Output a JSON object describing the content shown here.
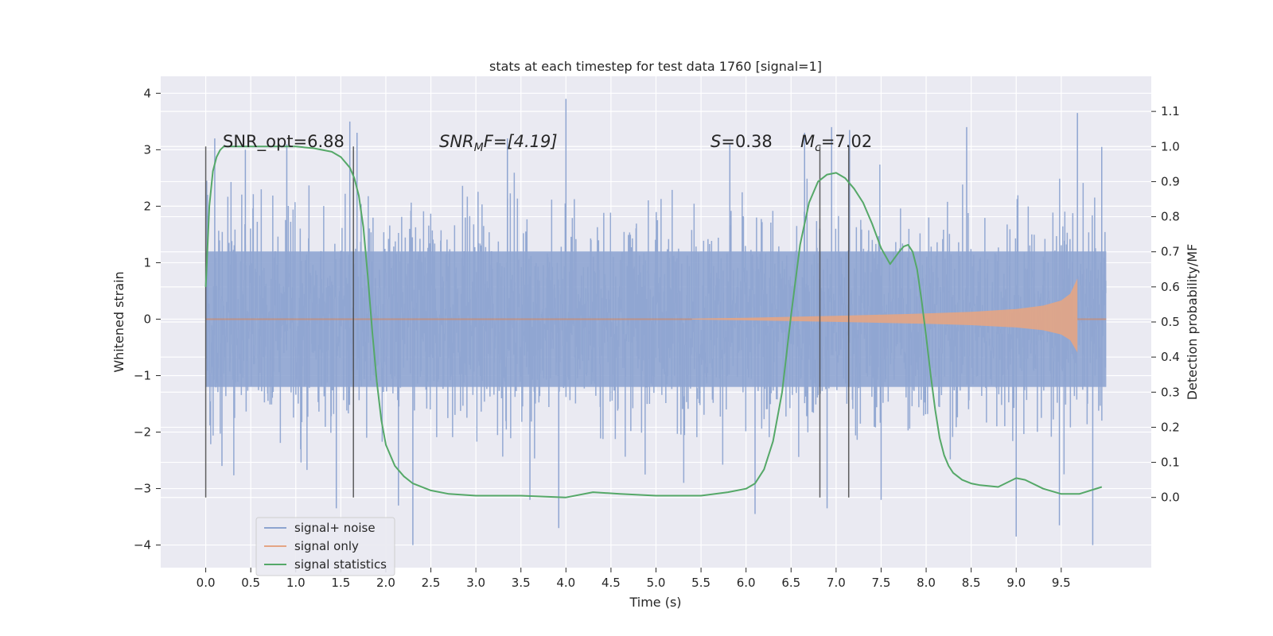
{
  "chart_data": {
    "type": "line",
    "title": "stats at each timestep for test data 1760 [signal=1]",
    "xlabel": "Time (s)",
    "ylabel_left": "Whitened strain",
    "ylabel_right": "Detection probability/MF",
    "xlim": [
      -0.5,
      10.5
    ],
    "ylim_left": [
      -4.4,
      4.3
    ],
    "ylim_right": [
      -0.2,
      1.2
    ],
    "x_ticks": [
      "0.0",
      "0.5",
      "1.0",
      "1.5",
      "2.0",
      "2.5",
      "3.0",
      "3.5",
      "4.0",
      "4.5",
      "5.0",
      "5.5",
      "6.0",
      "6.5",
      "7.0",
      "7.5",
      "8.0",
      "8.5",
      "9.0",
      "9.5"
    ],
    "y_ticks_left": [
      "4",
      "3",
      "2",
      "1",
      "0",
      "−1",
      "−2",
      "−3",
      "−4"
    ],
    "y_ticks_right": [
      "1.1",
      "1.0",
      "0.9",
      "0.8",
      "0.7",
      "0.6",
      "0.5",
      "0.4",
      "0.3",
      "0.2",
      "0.1",
      "0.0"
    ],
    "grid": true,
    "legend_position": "lower-left",
    "legend": [
      {
        "label": "signal+ noise",
        "color": "#4c72b0"
      },
      {
        "label": "signal only",
        "color": "#dd8452"
      },
      {
        "label": "signal statistics",
        "color": "#55a868"
      }
    ],
    "annotations": {
      "snr_opt": "SNR_opt=6.88",
      "snr_mf_base": "SNR",
      "snr_mf_sub": "M",
      "snr_mf_rest": "F=[4.19]",
      "s_base": "S",
      "s_rest": "=0.38",
      "mc_base": "M",
      "mc_sub": "c",
      "mc_rest": "=7.02"
    },
    "vertical_markers_x": [
      0.0,
      1.64,
      6.82,
      7.14
    ],
    "series": [
      {
        "name": "signal+ noise",
        "color": "#4c72b0",
        "noise_std": 1.0,
        "x_range": [
          0.0,
          10.0
        ],
        "extremes": [
          {
            "x": 0.02,
            "y": 2.2
          },
          {
            "x": 0.1,
            "y": 3.2
          },
          {
            "x": 0.18,
            "y": -2.6
          },
          {
            "x": 0.44,
            "y": 3.0
          },
          {
            "x": 0.9,
            "y": 3.1
          },
          {
            "x": 1.45,
            "y": -3.35
          },
          {
            "x": 1.6,
            "y": 3.5
          },
          {
            "x": 1.68,
            "y": 3.3
          },
          {
            "x": 2.14,
            "y": -3.3
          },
          {
            "x": 2.3,
            "y": -4.0
          },
          {
            "x": 3.35,
            "y": 3.2
          },
          {
            "x": 3.6,
            "y": -3.2
          },
          {
            "x": 3.92,
            "y": -3.7
          },
          {
            "x": 4.0,
            "y": 3.9
          },
          {
            "x": 5.82,
            "y": 3.1
          },
          {
            "x": 6.1,
            "y": -3.45
          },
          {
            "x": 6.65,
            "y": 3.3
          },
          {
            "x": 6.9,
            "y": -3.35
          },
          {
            "x": 6.95,
            "y": 3.4
          },
          {
            "x": 7.15,
            "y": 3.35
          },
          {
            "x": 7.5,
            "y": -3.2
          },
          {
            "x": 8.45,
            "y": 3.4
          },
          {
            "x": 9.0,
            "y": -3.85
          },
          {
            "x": 9.48,
            "y": -3.65
          },
          {
            "x": 9.68,
            "y": 3.65
          },
          {
            "x": 9.85,
            "y": -4.0
          },
          {
            "x": 9.95,
            "y": 3.05
          }
        ]
      },
      {
        "name": "signal only",
        "color": "#dd8452",
        "envelope": {
          "t_start": 5.4,
          "t_merge": 9.68,
          "x": [
            5.4,
            6.0,
            7.0,
            8.0,
            8.5,
            9.0,
            9.3,
            9.5,
            9.6,
            9.68
          ],
          "amplitude": [
            0.01,
            0.025,
            0.06,
            0.1,
            0.13,
            0.18,
            0.24,
            0.33,
            0.45,
            0.72
          ]
        }
      },
      {
        "name": "signal statistics",
        "color": "#55a868",
        "x": [
          0.0,
          0.04,
          0.08,
          0.12,
          0.16,
          0.2,
          0.3,
          0.5,
          0.8,
          1.0,
          1.2,
          1.4,
          1.5,
          1.6,
          1.65,
          1.7,
          1.75,
          1.8,
          1.85,
          1.9,
          1.95,
          2.0,
          2.1,
          2.2,
          2.3,
          2.5,
          2.7,
          3.0,
          3.5,
          4.0,
          4.3,
          4.6,
          5.0,
          5.5,
          5.8,
          6.0,
          6.1,
          6.2,
          6.3,
          6.4,
          6.5,
          6.6,
          6.7,
          6.8,
          6.9,
          7.0,
          7.1,
          7.2,
          7.3,
          7.4,
          7.5,
          7.6,
          7.7,
          7.75,
          7.8,
          7.85,
          7.9,
          7.95,
          8.0,
          8.05,
          8.1,
          8.15,
          8.2,
          8.25,
          8.3,
          8.4,
          8.5,
          8.6,
          8.8,
          9.0,
          9.1,
          9.3,
          9.5,
          9.7,
          9.95
        ],
        "values": [
          0.6,
          0.83,
          0.93,
          0.97,
          0.99,
          1.0,
          1.0,
          1.0,
          1.0,
          1.0,
          0.995,
          0.985,
          0.97,
          0.94,
          0.91,
          0.86,
          0.77,
          0.63,
          0.47,
          0.33,
          0.22,
          0.15,
          0.09,
          0.06,
          0.04,
          0.02,
          0.01,
          0.005,
          0.005,
          0.0,
          0.015,
          0.01,
          0.005,
          0.005,
          0.015,
          0.025,
          0.04,
          0.08,
          0.16,
          0.3,
          0.52,
          0.72,
          0.84,
          0.9,
          0.92,
          0.925,
          0.91,
          0.88,
          0.84,
          0.78,
          0.71,
          0.665,
          0.7,
          0.715,
          0.72,
          0.7,
          0.65,
          0.56,
          0.46,
          0.35,
          0.25,
          0.17,
          0.12,
          0.09,
          0.07,
          0.05,
          0.04,
          0.035,
          0.03,
          0.055,
          0.05,
          0.025,
          0.01,
          0.01,
          0.03
        ]
      }
    ]
  }
}
